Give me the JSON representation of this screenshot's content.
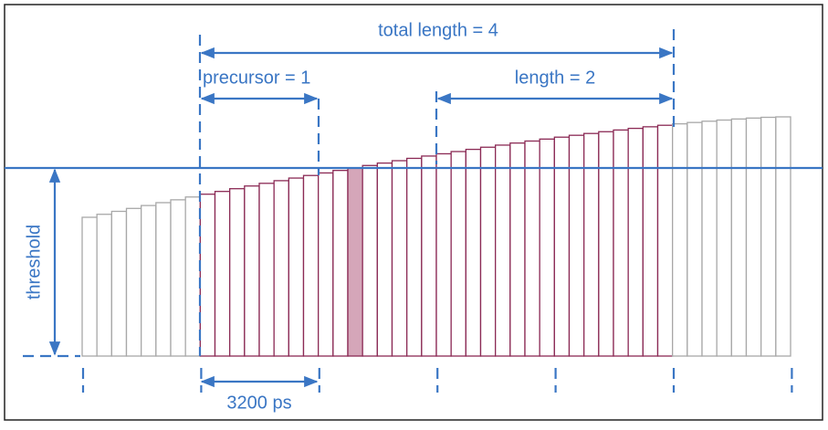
{
  "labels": {
    "total_length": "total length = 4",
    "precursor": "precursor = 1",
    "length": "length = 2",
    "threshold": "threshold",
    "period": "3200 ps"
  }
}
